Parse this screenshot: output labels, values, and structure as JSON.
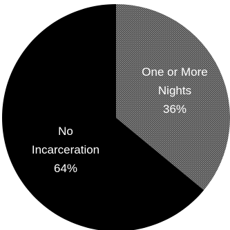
{
  "chart_data": {
    "type": "pie",
    "title": "",
    "slices": [
      {
        "label": "One or More Nights",
        "value": 36,
        "value_label": "36%",
        "color": "#6a6a6a"
      },
      {
        "label": "No Incarceration",
        "value": 64,
        "value_label": "64%",
        "color": "#000000"
      }
    ],
    "legend": "none"
  }
}
